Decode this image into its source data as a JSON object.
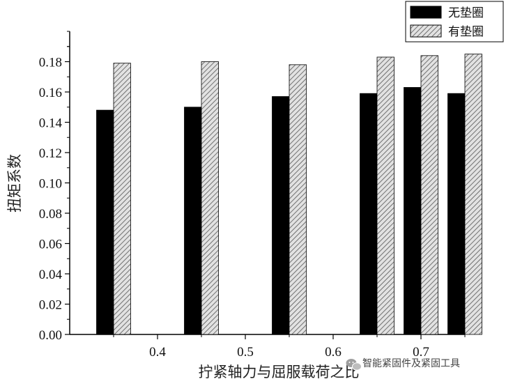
{
  "chart_data": {
    "type": "bar",
    "xlabel": "拧紧轴力与屈服载荷之比",
    "ylabel": "扭矩系数",
    "ylim": [
      0,
      0.2
    ],
    "yticks": [
      "0.00",
      "0.02",
      "0.04",
      "0.06",
      "0.08",
      "0.10",
      "0.12",
      "0.14",
      "0.16",
      "0.18"
    ],
    "xlim": [
      0.3,
      0.75
    ],
    "xticks": [
      "0.4",
      "0.5",
      "0.6",
      "0.7"
    ],
    "x": [
      0.35,
      0.45,
      0.55,
      0.65,
      0.7,
      0.75
    ],
    "legend_position": "top-right",
    "series": [
      {
        "name": "无垫圈",
        "fill": "solid",
        "color": "#000000",
        "values": [
          0.148,
          0.15,
          0.157,
          0.159,
          0.163,
          0.159
        ]
      },
      {
        "name": "有垫圈",
        "fill": "hatched",
        "color": "#bdbdbd",
        "values": [
          0.179,
          0.18,
          0.178,
          0.183,
          0.184,
          0.185
        ]
      }
    ]
  },
  "watermark": {
    "text": "智能紧固件及紧固工具",
    "icon": "wechat-logo"
  }
}
